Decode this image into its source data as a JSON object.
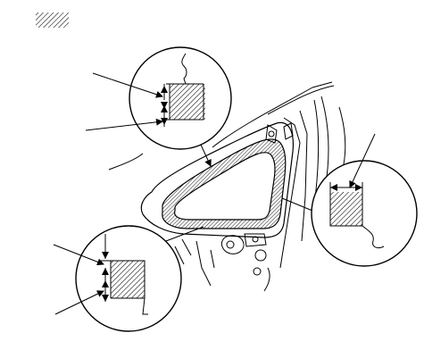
{
  "figure": {
    "legend": {
      "icon": "hatch-swatch-icon",
      "meaning_shown": "hatched area"
    },
    "callouts": [
      {
        "name": "top-detail-callout",
        "leader_lines": 2,
        "arrows": 2
      },
      {
        "name": "right-detail-callout",
        "leader_lines": 1,
        "arrows": 1
      },
      {
        "name": "bottom-left-detail-callout",
        "leader_lines": 2,
        "arrows": 2
      }
    ],
    "colors": {
      "line": "#000000",
      "background": "#ffffff"
    }
  }
}
